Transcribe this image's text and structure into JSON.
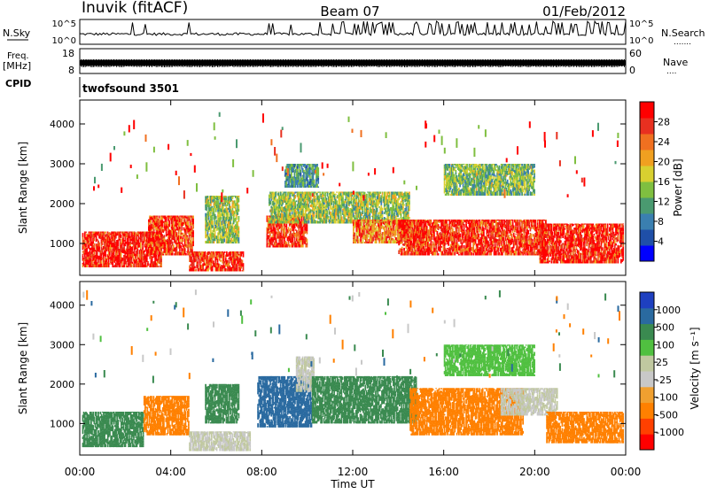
{
  "header": {
    "station": "Inuvik (fitACF)",
    "beam": "Beam 07",
    "date": "01/Feb/2012"
  },
  "top_panels": {
    "nsky": {
      "label": "N.Sky",
      "tick_top": "10^5",
      "tick_bottom": "10^0",
      "right_label": "N.Search",
      "right_tick_top": "10^5",
      "right_tick_bottom": "10^0"
    },
    "freq": {
      "label_line1": "Freq.",
      "label_line2": "[MHz]",
      "tick_top": "18",
      "tick_bottom": "8",
      "right_label": "Nave",
      "right_tick_top": "60",
      "right_tick_bottom": "0"
    },
    "cpid": {
      "label": "CPID",
      "program": "twofsound 3501"
    }
  },
  "colors": {
    "power": [
      "#0000ff",
      "#1f4fa8",
      "#3a7fb0",
      "#4a9a70",
      "#7fbf40",
      "#d8d030",
      "#f0a020",
      "#f07020",
      "#e83020",
      "#ff0000"
    ],
    "velocity": [
      "#ff0000",
      "#ff4000",
      "#ff8000",
      "#f0a030",
      "#c8c8c8",
      "#c0c8a0",
      "#50c040",
      "#3a8a50",
      "#2a6aa0",
      "#1e40c0"
    ]
  },
  "chart_data": [
    {
      "type": "heatmap",
      "panel": "power",
      "ylabel": "Slant Range [km]",
      "xlabel": "Time UT",
      "x_ticks": [
        "00:00",
        "04:00",
        "08:00",
        "12:00",
        "16:00",
        "20:00",
        "00:00"
      ],
      "x_range_hours": [
        0,
        24
      ],
      "y_ticks": [
        1000,
        2000,
        3000,
        4000
      ],
      "ylim": [
        200,
        4600
      ],
      "colorbar_label": "Power [dB]",
      "colorbar_ticks": [
        "4",
        "8",
        "12",
        "16",
        "20",
        "24",
        "28"
      ],
      "colorbar_range": [
        0,
        30
      ],
      "regions": [
        {
          "t0": 0.1,
          "t1": 3.6,
          "r0": 400,
          "r1": 1300,
          "value": 28
        },
        {
          "t0": 3.0,
          "t1": 5.0,
          "r0": 700,
          "r1": 1700,
          "value": 26
        },
        {
          "t0": 4.8,
          "t1": 7.2,
          "r0": 300,
          "r1": 800,
          "value": 27
        },
        {
          "t0": 5.5,
          "t1": 7.0,
          "r0": 1000,
          "r1": 2200,
          "value": 14
        },
        {
          "t0": 8.2,
          "t1": 10.0,
          "r0": 900,
          "r1": 1700,
          "value": 27
        },
        {
          "t0": 8.3,
          "t1": 14.5,
          "r0": 1500,
          "r1": 2300,
          "value": 14
        },
        {
          "t0": 12.0,
          "t1": 15.0,
          "r0": 1000,
          "r1": 1600,
          "value": 22
        },
        {
          "t0": 14.0,
          "t1": 20.5,
          "r0": 700,
          "r1": 1600,
          "value": 27
        },
        {
          "t0": 20.2,
          "t1": 23.9,
          "r0": 500,
          "r1": 1500,
          "value": 28
        },
        {
          "t0": 9.0,
          "t1": 10.5,
          "r0": 2400,
          "r1": 3000,
          "value": 10
        },
        {
          "t0": 16.0,
          "t1": 20.0,
          "r0": 2200,
          "r1": 3000,
          "value": 13
        }
      ]
    },
    {
      "type": "heatmap",
      "panel": "velocity",
      "ylabel": "Slant Range [km]",
      "xlabel": "Time UT",
      "x_ticks": [
        "00:00",
        "04:00",
        "08:00",
        "12:00",
        "16:00",
        "20:00",
        "00:00"
      ],
      "x_range_hours": [
        0,
        24
      ],
      "y_ticks": [
        1000,
        2000,
        3000,
        4000
      ],
      "ylim": [
        200,
        4600
      ],
      "colorbar_label": "Velocity [m s⁻¹]",
      "colorbar_ticks": [
        "-1000",
        "-500",
        "-100",
        "-25",
        "25",
        "100",
        "500",
        "1000"
      ],
      "colorbar_range": [
        -1200,
        1200
      ],
      "regions": [
        {
          "t0": 0.1,
          "t1": 2.8,
          "r0": 400,
          "r1": 1300,
          "value": 350
        },
        {
          "t0": 2.8,
          "t1": 4.8,
          "r0": 700,
          "r1": 1700,
          "value": -200
        },
        {
          "t0": 4.8,
          "t1": 7.5,
          "r0": 300,
          "r1": 800,
          "value": 0
        },
        {
          "t0": 5.5,
          "t1": 7.0,
          "r0": 1000,
          "r1": 2000,
          "value": 300
        },
        {
          "t0": 7.8,
          "t1": 10.2,
          "r0": 900,
          "r1": 2200,
          "value": 700
        },
        {
          "t0": 9.5,
          "t1": 10.3,
          "r0": 1800,
          "r1": 2700,
          "value": 0
        },
        {
          "t0": 10.2,
          "t1": 14.8,
          "r0": 1000,
          "r1": 2200,
          "value": 250
        },
        {
          "t0": 14.5,
          "t1": 19.5,
          "r0": 700,
          "r1": 1900,
          "value": -250
        },
        {
          "t0": 18.5,
          "t1": 21.0,
          "r0": 1200,
          "r1": 1900,
          "value": 0
        },
        {
          "t0": 20.5,
          "t1": 23.9,
          "r0": 500,
          "r1": 1300,
          "value": -200
        },
        {
          "t0": 16.0,
          "t1": 20.0,
          "r0": 2200,
          "r1": 3000,
          "value": 60
        }
      ]
    }
  ]
}
